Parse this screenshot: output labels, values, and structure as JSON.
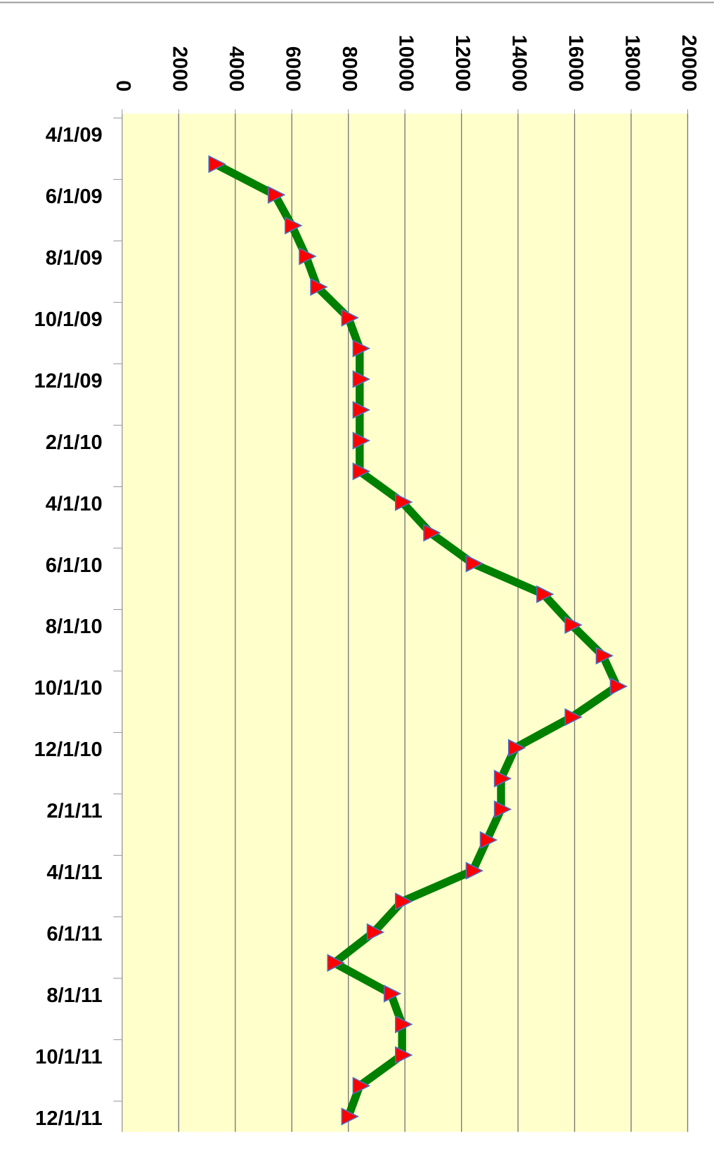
{
  "chart_data": {
    "type": "line",
    "x": [
      "5/1/09",
      "6/1/09",
      "7/1/09",
      "8/1/09",
      "9/1/09",
      "10/1/09",
      "11/1/09",
      "12/1/09",
      "1/1/10",
      "2/1/10",
      "3/1/10",
      "4/1/10",
      "5/1/10",
      "6/1/10",
      "7/1/10",
      "8/1/10",
      "9/1/10",
      "10/1/10",
      "11/1/10",
      "12/1/10",
      "1/1/11",
      "2/1/11",
      "3/1/11",
      "4/1/11",
      "5/1/11",
      "6/1/11",
      "7/1/11",
      "8/1/11",
      "9/1/11",
      "10/1/11",
      "11/1/11",
      "12/1/11"
    ],
    "series": [
      {
        "color": "#008000",
        "marker_color": "#ff0000",
        "values": [
          3300,
          5400,
          6000,
          6500,
          6900,
          8000,
          8400,
          8400,
          8400,
          8400,
          8400,
          9900,
          10900,
          12400,
          14900,
          15900,
          17000,
          17500,
          15900,
          13900,
          13400,
          13400,
          12900,
          12400,
          9900,
          8900,
          7500,
          9500,
          9900,
          9900,
          8400,
          8000
        ]
      }
    ],
    "xticks": [
      "4/1/09",
      "6/1/09",
      "8/1/09",
      "10/1/09",
      "12/1/09",
      "2/1/10",
      "4/1/10",
      "6/1/10",
      "8/1/10",
      "10/1/10",
      "12/1/10",
      "2/1/11",
      "4/1/11",
      "6/1/11",
      "8/1/11",
      "10/1/11",
      "12/1/11"
    ],
    "ylim": [
      0,
      20000
    ],
    "yticks": [
      0,
      2000,
      4000,
      6000,
      8000,
      10000,
      12000,
      14000,
      16000,
      18000,
      20000
    ],
    "grid": true
  }
}
